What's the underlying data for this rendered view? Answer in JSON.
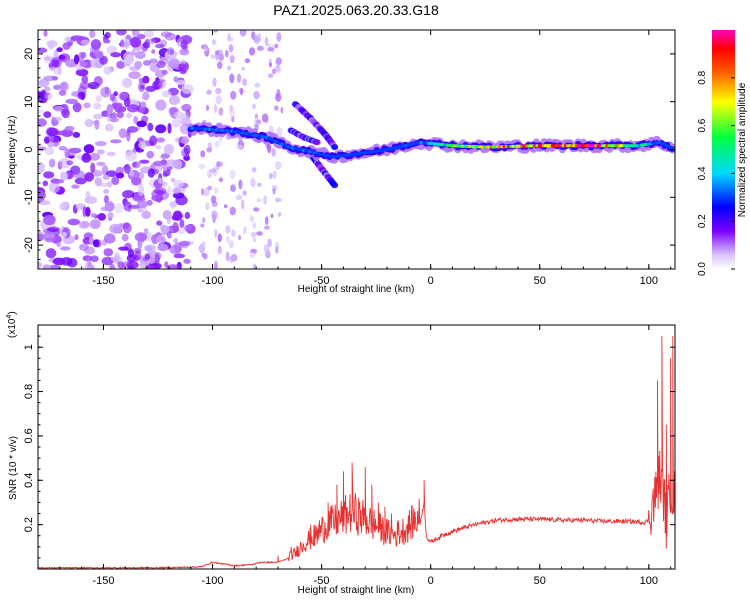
{
  "title": "PAZ1.2025.063.20.33.G18",
  "colors": {
    "background": "#ffffff",
    "snr_line": "#e83030",
    "colormap": [
      "#ffffff",
      "#d9c2ff",
      "#7a00ff",
      "#0000ff",
      "#00d9ff",
      "#00ff40",
      "#ffff00",
      "#ff6000",
      "#ff0000",
      "#ff00c0"
    ]
  },
  "chart_data": [
    {
      "type": "heatmap",
      "title": "PAZ1.2025.063.20.33.G18",
      "xlabel": "Height of straight line (km)",
      "ylabel": "Frequency (Hz)",
      "xlim": [
        -180,
        112
      ],
      "ylim": [
        -25,
        25
      ],
      "xticks": [
        -150,
        -100,
        -50,
        0,
        50,
        100
      ],
      "yticks": [
        -20,
        -10,
        0,
        10,
        20
      ],
      "colorbar": {
        "label": "Normalized spectral amplitude",
        "range": [
          0,
          1
        ],
        "ticks": [
          "0.0",
          "0.2",
          "0.4",
          "0.6",
          "0.8"
        ]
      },
      "features": {
        "noise_region_x": [
          -180,
          -110
        ],
        "sparse_noise_region_x": [
          -110,
          -68
        ],
        "main_ridge": [
          {
            "x": -110,
            "y": 4.5,
            "amp": 0.3
          },
          {
            "x": -90,
            "y": 3.8,
            "amp": 0.3
          },
          {
            "x": -75,
            "y": 2.5,
            "amp": 0.3
          },
          {
            "x": -65,
            "y": 0.5,
            "amp": 0.3
          },
          {
            "x": -55,
            "y": -0.5,
            "amp": 0.3
          },
          {
            "x": -45,
            "y": -1.5,
            "amp": 0.2
          },
          {
            "x": -35,
            "y": -1.0,
            "amp": 0.25
          },
          {
            "x": -20,
            "y": 0.0,
            "amp": 0.25
          },
          {
            "x": -5,
            "y": 1.5,
            "amp": 0.3
          },
          {
            "x": 10,
            "y": 0.8,
            "amp": 0.55
          },
          {
            "x": 25,
            "y": 0.5,
            "amp": 0.7
          },
          {
            "x": 50,
            "y": 0.8,
            "amp": 0.85
          },
          {
            "x": 75,
            "y": 0.8,
            "amp": 0.9
          },
          {
            "x": 95,
            "y": 0.8,
            "amp": 0.5
          },
          {
            "x": 105,
            "y": 1.5,
            "amp": 0.3
          },
          {
            "x": 112,
            "y": 0.0,
            "amp": 0.25
          }
        ],
        "secondary_branches": [
          [
            {
              "x": -62,
              "y": 9.5
            },
            {
              "x": -55,
              "y": 6.5
            },
            {
              "x": -48,
              "y": 3.0
            },
            {
              "x": -44,
              "y": 0.5
            }
          ],
          [
            {
              "x": -55,
              "y": -1.0
            },
            {
              "x": -50,
              "y": -4.0
            },
            {
              "x": -44,
              "y": -7.5
            }
          ],
          [
            {
              "x": -64,
              "y": 4.0
            },
            {
              "x": -58,
              "y": 2.5
            },
            {
              "x": -52,
              "y": 1.5
            }
          ]
        ]
      }
    },
    {
      "type": "line",
      "xlabel": "Height of straight line (km)",
      "ylabel": "SNR (10 * v/v)",
      "y_scale_label": "(x10",
      "y_scale_exponent": "4",
      "xlim": [
        -180,
        112
      ],
      "ylim": [
        0,
        1.1
      ],
      "xticks": [
        -150,
        -100,
        -50,
        0,
        50,
        100
      ],
      "yticks": [
        0.2,
        0.4,
        0.6,
        0.8,
        1.0
      ],
      "series": [
        {
          "x": [
            -180,
            -150,
            -120,
            -105,
            -100,
            -90,
            -82,
            -78,
            -70,
            -62,
            -58,
            -52,
            -48,
            -44,
            -40,
            -36,
            -32,
            -28,
            -24,
            -20,
            -16,
            -12,
            -8,
            -5,
            -3,
            -2,
            0,
            5,
            10,
            20,
            30,
            40,
            50,
            60,
            70,
            80,
            90,
            98,
            100,
            103,
            105,
            107,
            108,
            110,
            112
          ],
          "values": [
            0.005,
            0.005,
            0.006,
            0.01,
            0.03,
            0.015,
            0.02,
            0.03,
            0.03,
            0.06,
            0.1,
            0.13,
            0.17,
            0.18,
            0.2,
            0.22,
            0.2,
            0.18,
            0.16,
            0.14,
            0.13,
            0.15,
            0.18,
            0.2,
            0.3,
            0.15,
            0.12,
            0.15,
            0.17,
            0.2,
            0.22,
            0.225,
            0.225,
            0.22,
            0.22,
            0.215,
            0.215,
            0.21,
            0.22,
            0.3,
            0.4,
            0.3,
            0.18,
            0.35,
            0.3
          ],
          "spikes": [
            {
              "x": -70,
              "y": 0.06
            },
            {
              "x": -64,
              "y": 0.1
            },
            {
              "x": -55,
              "y": 0.2
            },
            {
              "x": -51,
              "y": 0.22
            },
            {
              "x": -47,
              "y": 0.3
            },
            {
              "x": -43,
              "y": 0.38
            },
            {
              "x": -40,
              "y": 0.44
            },
            {
              "x": -36,
              "y": 0.48
            },
            {
              "x": -33,
              "y": 0.3
            },
            {
              "x": -30,
              "y": 0.46
            },
            {
              "x": -27,
              "y": 0.38
            },
            {
              "x": -24,
              "y": 0.3
            },
            {
              "x": -21,
              "y": 0.28
            },
            {
              "x": -18,
              "y": 0.25
            },
            {
              "x": -15,
              "y": 0.22
            },
            {
              "x": -3,
              "y": 0.4
            },
            {
              "x": 104,
              "y": 0.85
            },
            {
              "x": 106,
              "y": 1.05
            },
            {
              "x": 108,
              "y": 0.65
            },
            {
              "x": 110,
              "y": 0.95
            },
            {
              "x": 111,
              "y": 1.05
            }
          ]
        }
      ]
    }
  ]
}
